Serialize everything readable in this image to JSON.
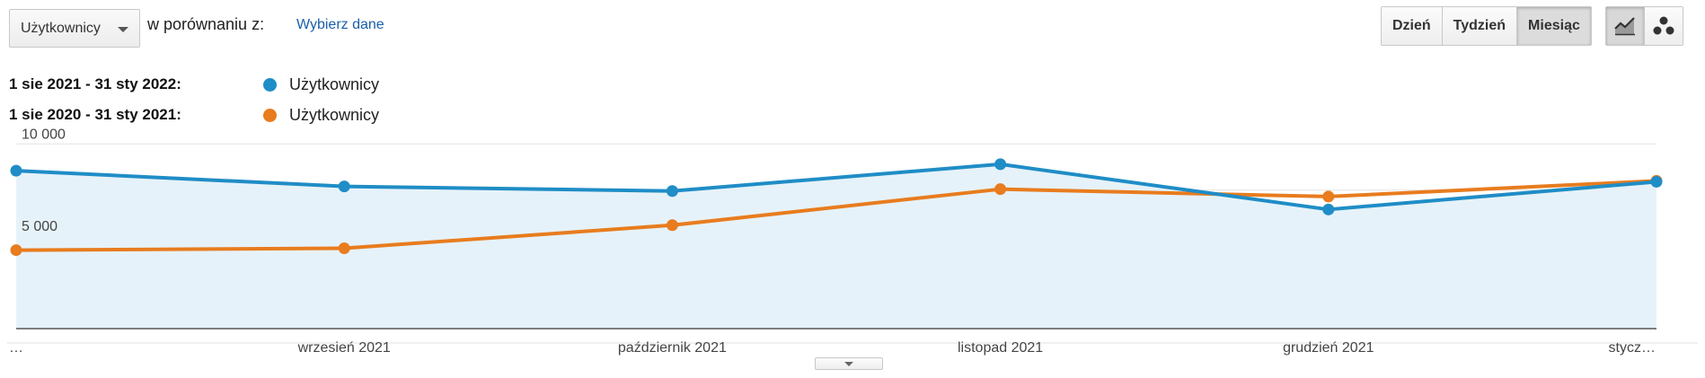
{
  "toolbar": {
    "metric_select": "Użytkownicy",
    "compare_label": "w porównaniu z:",
    "choose_data": "Wybierz dane",
    "periods": [
      {
        "label": "Dzień",
        "active": false
      },
      {
        "label": "Tydzień",
        "active": false
      },
      {
        "label": "Miesiąc",
        "active": true
      }
    ],
    "views": [
      {
        "icon": "line-chart-icon",
        "active": true
      },
      {
        "icon": "motion-chart-icon",
        "active": false
      }
    ]
  },
  "legend": [
    {
      "range": "1 sie 2021 - 31 sty 2022:",
      "name": "Użytkownicy",
      "color": "#1f8dc6"
    },
    {
      "range": "1 sie 2020 - 31 sty 2021:",
      "name": "Użytkownicy",
      "color": "#e87c1e"
    }
  ],
  "chart_data": {
    "type": "line",
    "categories": [
      "…",
      "wrzesień 2021",
      "październik 2021",
      "listopad 2021",
      "grudzień 2021",
      "stycz…"
    ],
    "ytick_labels": [
      "10 000",
      "5 000"
    ],
    "yticks": [
      10000,
      5000
    ],
    "ylim": [
      0,
      10500
    ],
    "grid": true,
    "series": [
      {
        "name": "Użytkownicy",
        "period": "1 sie 2021 - 31 sty 2022",
        "color": "#1f8dc6",
        "values": [
          8550,
          7700,
          7450,
          8900,
          6450,
          7950
        ]
      },
      {
        "name": "Użytkownicy",
        "period": "1 sie 2020 - 31 sty 2021",
        "color": "#e87c1e",
        "values": [
          4250,
          4350,
          5600,
          7550,
          7150,
          8000
        ]
      }
    ],
    "area_fill": "#e6f2f9"
  }
}
